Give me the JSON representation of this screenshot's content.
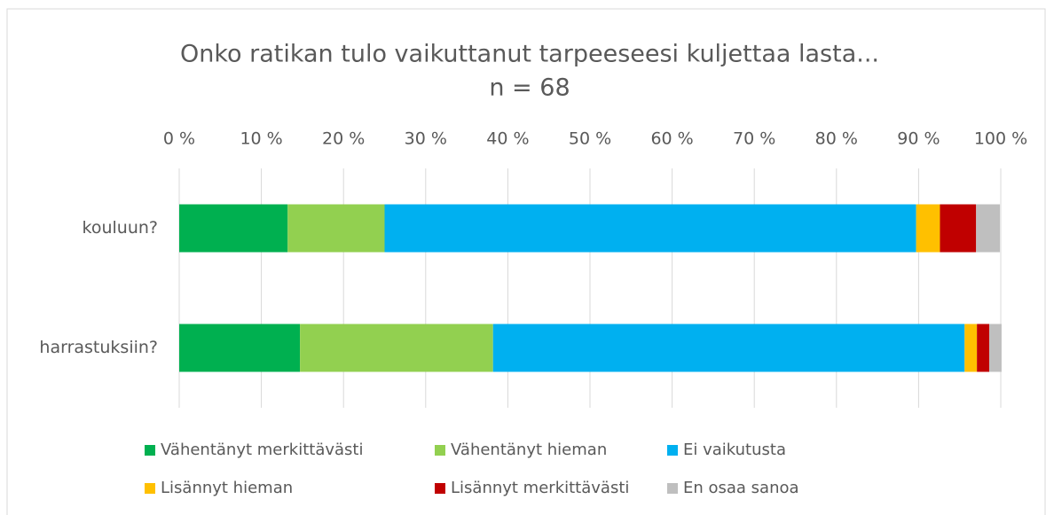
{
  "chart_data": {
    "type": "bar",
    "orientation": "horizontal",
    "stacked": true,
    "title": "Onko ratikan tulo vaikuttanut tarpeeseesi kuljettaa lasta...",
    "subtitle": "n = 68",
    "categories": [
      "kouluun?",
      "harrastuksiin?"
    ],
    "series": [
      {
        "name": "Vähentänyt merkittävästi",
        "color": "#00b050",
        "values": [
          13.2,
          14.7
        ]
      },
      {
        "name": "Vähentänyt hieman",
        "color": "#92d050",
        "values": [
          11.8,
          23.5
        ]
      },
      {
        "name": "Ei vaikutusta",
        "color": "#00b0f0",
        "values": [
          64.7,
          57.4
        ]
      },
      {
        "name": "Lisännyt hieman",
        "color": "#ffc000",
        "values": [
          2.9,
          1.5
        ]
      },
      {
        "name": "Lisännyt merkittävästi",
        "color": "#c00000",
        "values": [
          4.4,
          1.5
        ]
      },
      {
        "name": "En osaa sanoa",
        "color": "#bfbfbf",
        "values": [
          2.9,
          1.5
        ]
      }
    ],
    "xlim": [
      0,
      100
    ],
    "xticks": [
      {
        "value": 0,
        "label": "0 %"
      },
      {
        "value": 10,
        "label": "10 %"
      },
      {
        "value": 20,
        "label": "20 %"
      },
      {
        "value": 30,
        "label": "30 %"
      },
      {
        "value": 40,
        "label": "40 %"
      },
      {
        "value": 50,
        "label": "50 %"
      },
      {
        "value": 60,
        "label": "60 %"
      },
      {
        "value": 70,
        "label": "70 %"
      },
      {
        "value": 80,
        "label": "80 %"
      },
      {
        "value": 90,
        "label": "90 %"
      },
      {
        "value": 100,
        "label": "100 %"
      }
    ],
    "grid": true,
    "legend": "bottom"
  }
}
